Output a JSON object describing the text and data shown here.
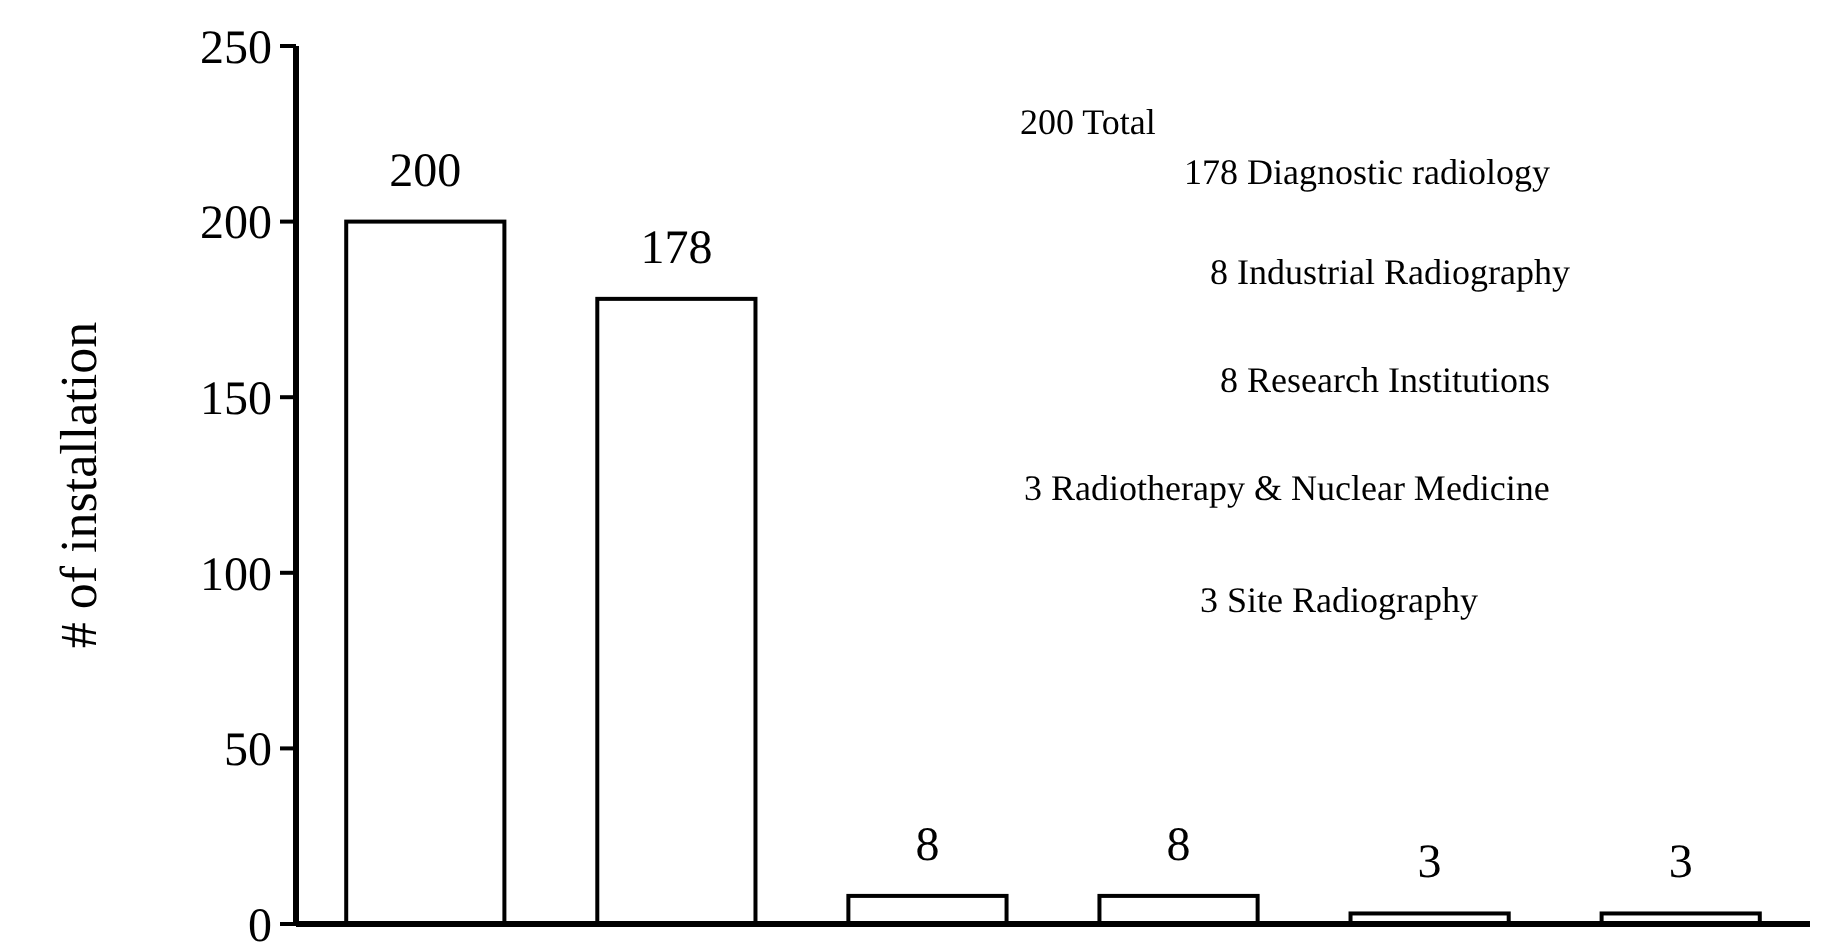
{
  "chart_data": {
    "type": "bar",
    "ylabel": "# of installation",
    "categories": [
      null,
      null,
      null,
      null,
      null,
      null
    ],
    "values": [
      200,
      178,
      8,
      8,
      3,
      3
    ],
    "color": "#ffffff",
    "ylim": [
      0,
      250
    ],
    "yticks": [
      0,
      50,
      100,
      150,
      200,
      250
    ],
    "data_labels": true,
    "annotations": [
      "200 Total",
      "178 Diagnostic radiology",
      "8 Industrial Radiography",
      "8 Research Institutions",
      "3 Radiotherapy & Nuclear Medicine",
      "3 Site Radiography"
    ]
  }
}
